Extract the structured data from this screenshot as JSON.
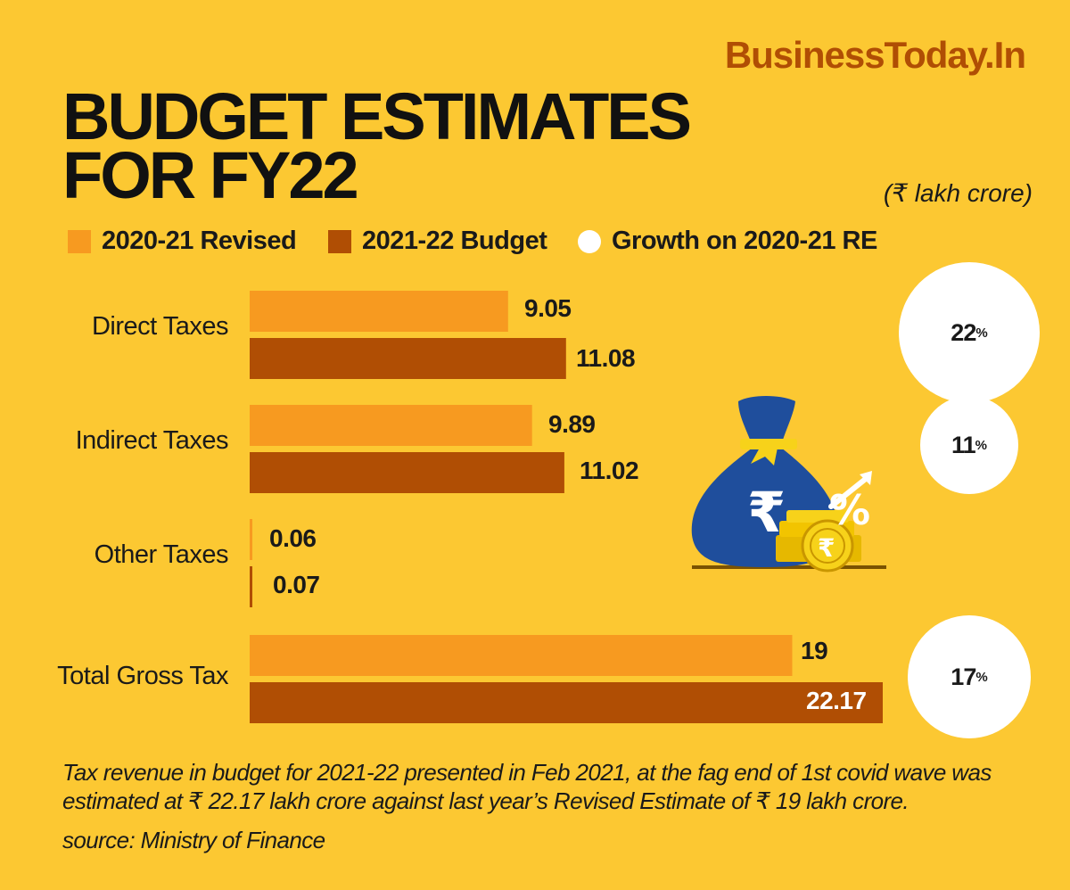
{
  "brand": "BusinessToday.In",
  "title": {
    "line1": "BUDGET ESTIMATES",
    "line2": "FOR FY22"
  },
  "unit_note": "(₹ lakh crore)",
  "colors": {
    "background": "#FCC832",
    "revised": "#F79A20",
    "budget": "#B04E04",
    "growth": "#FFFFFF",
    "brand": "#B04E04"
  },
  "chart_data": {
    "type": "bar",
    "orientation": "horizontal",
    "unit": "₹ lakh crore",
    "categories": [
      "Direct Taxes",
      "Indirect Taxes",
      "Other Taxes",
      "Total Gross Tax"
    ],
    "series": [
      {
        "name": "2020-21 Revised",
        "values": [
          9.05,
          9.89,
          0.06,
          19
        ],
        "labels": [
          "9.05",
          "9.89",
          "0.06",
          "19"
        ]
      },
      {
        "name": "2021-22 Budget",
        "values": [
          11.08,
          11.02,
          0.07,
          22.17
        ],
        "labels": [
          "11.08",
          "11.02",
          "0.07",
          "22.17"
        ]
      }
    ],
    "growth_series": {
      "name": "Growth on 2020-21 RE",
      "values": [
        22,
        11,
        null,
        17
      ],
      "labels": [
        "22",
        "11",
        "",
        "17"
      ],
      "suffix": "%"
    },
    "legend": [
      "2020-21 Revised",
      "2021-22 Budget",
      "Growth on 2020-21 RE"
    ],
    "legend_position": "top",
    "xlim": [
      0,
      22.17
    ],
    "grid": false
  },
  "note": "Tax revenue in budget for 2021-22 presented in Feb 2021, at the fag end of 1st covid wave was estimated at ₹ 22.17 lakh crore against last year’s Revised Estimate of ₹ 19 lakh crore.",
  "source": "source: Ministry of Finance"
}
